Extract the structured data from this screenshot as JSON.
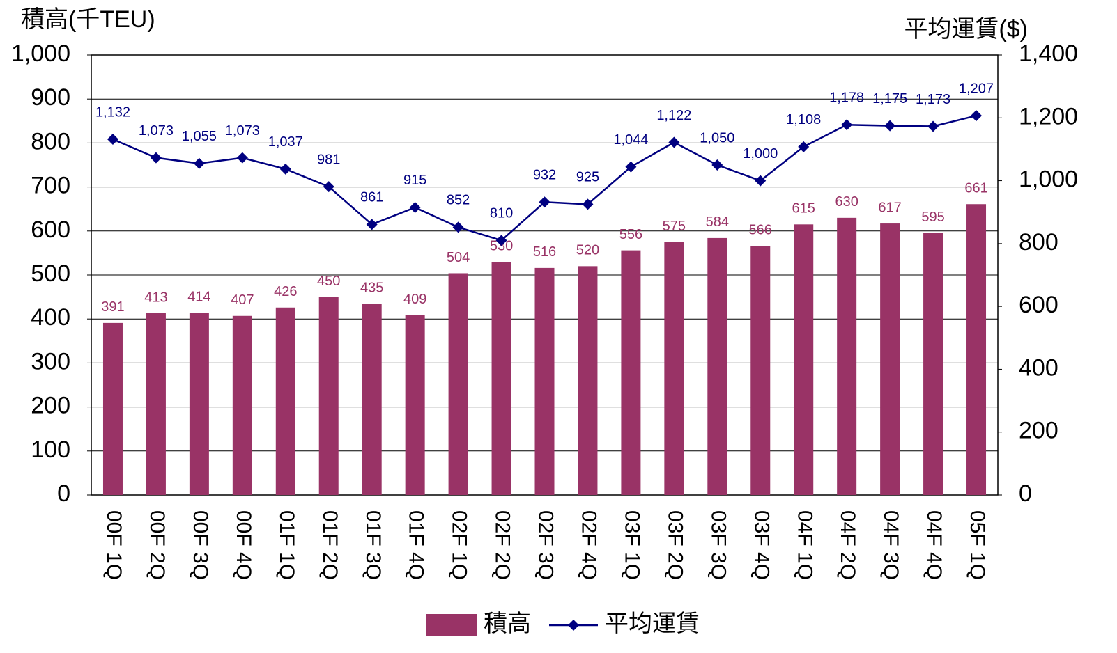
{
  "chart_data": {
    "type": "bar",
    "y_label": "積高(千TEU)",
    "y2_label": "平均運賃($)",
    "categories": [
      "00F 1Q",
      "00F 2Q",
      "00F 3Q",
      "00F 4Q",
      "01F 1Q",
      "01F 2Q",
      "01F 3Q",
      "01F 4Q",
      "02F 1Q",
      "02F 2Q",
      "02F 3Q",
      "02F 4Q",
      "03F 1Q",
      "03F 2Q",
      "03F 3Q",
      "03F 4Q",
      "04F 1Q",
      "04F 2Q",
      "04F 3Q",
      "04F 4Q",
      "05F 1Q"
    ],
    "series": [
      {
        "name": "積高",
        "type": "bar",
        "color": "#993366",
        "values": [
          391,
          413,
          414,
          407,
          426,
          450,
          435,
          409,
          504,
          530,
          516,
          520,
          556,
          575,
          584,
          566,
          615,
          630,
          617,
          595,
          661
        ]
      },
      {
        "name": "平均運賃",
        "type": "line",
        "axis": "y2",
        "color": "#000080",
        "values": [
          1132,
          1073,
          1055,
          1073,
          1037,
          981,
          861,
          915,
          852,
          810,
          932,
          925,
          1044,
          1122,
          1050,
          1000,
          1108,
          1178,
          1175,
          1173,
          1207
        ],
        "value_labels": [
          "1,132",
          "1,073",
          "1,055",
          "1,073",
          "1,037",
          "981",
          "861",
          "915",
          "852",
          "810",
          "932",
          "925",
          "1,044",
          "1,122",
          "1,050",
          "1,000",
          "1,108",
          "1,178",
          "1,175",
          "1,173",
          "1,207"
        ]
      }
    ],
    "ylim": [
      0,
      1000
    ],
    "yticks": [
      0,
      100,
      200,
      300,
      400,
      500,
      600,
      700,
      800,
      900,
      {
        "value": 1000,
        "label": "1,000"
      }
    ],
    "y2lim": [
      0,
      1400
    ],
    "y2ticks": [
      0,
      200,
      400,
      600,
      800,
      {
        "value": 1000,
        "label": "1,000"
      },
      {
        "value": 1200,
        "label": "1,200"
      },
      {
        "value": 1400,
        "label": "1,400"
      }
    ],
    "grid": true,
    "legend": "bottom"
  }
}
